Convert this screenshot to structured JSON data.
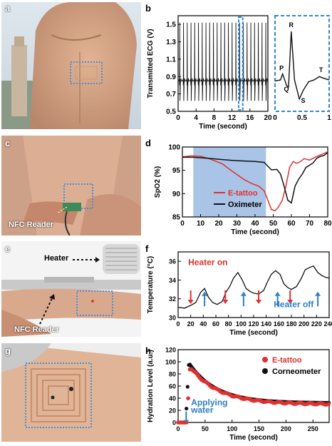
{
  "panels": {
    "a": "a",
    "b": "b",
    "c": "c",
    "d": "d",
    "e": "e",
    "f": "f",
    "g": "g",
    "h": "h"
  },
  "photo_labels": {
    "nfc_reader_c": "NFC Reader",
    "heater": "Heater",
    "nfc_reader_e": "NFC Reader"
  },
  "colors": {
    "red": "#e03030",
    "black": "#111111",
    "blue": "#2f7fc0",
    "shade": "#a9c4e6",
    "dashed": "#2f88d0"
  },
  "chart_data": [
    {
      "panel": "b",
      "type": "line",
      "title": "",
      "xlabel": "Time (second)",
      "ylabel": "Transmitted ECG (V)",
      "xlim": [
        0,
        20
      ],
      "ylim": [
        0.5,
        1.6
      ],
      "xticks": [
        "0",
        "4",
        "8",
        "12",
        "16",
        "20"
      ],
      "yticks": [
        "0.5",
        "0.7",
        "0.9",
        "1.1",
        "1.3",
        "1.5"
      ],
      "beats": 24,
      "baseline": 0.85,
      "peak": 1.52,
      "trough": 0.62,
      "zoom_window": [
        13.5,
        14.4
      ],
      "inset": {
        "xlabel": "",
        "xlim": [
          0,
          1
        ],
        "xticks": [
          "0",
          "0.5",
          "1"
        ],
        "labels": [
          "P",
          "Q",
          "R",
          "S",
          "T"
        ]
      }
    },
    {
      "panel": "d",
      "type": "line",
      "xlabel": "Time (second)",
      "ylabel": "SpO2 (%)",
      "xlim": [
        0,
        80
      ],
      "ylim": [
        85,
        100
      ],
      "xticks": [
        "0",
        "10",
        "20",
        "30",
        "40",
        "50",
        "60",
        "70",
        "80"
      ],
      "yticks": [
        "85",
        "90",
        "95",
        "100"
      ],
      "shaded_range": [
        6,
        46
      ],
      "series": [
        {
          "name": "E-tattoo",
          "color": "red",
          "x": [
            0,
            5,
            10,
            14,
            18,
            22,
            26,
            30,
            34,
            38,
            42,
            45,
            47,
            49,
            51,
            53,
            55,
            57,
            59,
            61,
            63,
            65,
            67,
            70,
            73,
            76,
            78,
            80
          ],
          "y": [
            97.9,
            98.1,
            98.0,
            97.6,
            97.0,
            96.4,
            95.2,
            94.1,
            93.0,
            92.2,
            91.6,
            90.6,
            88.6,
            86.6,
            86.3,
            87.2,
            88.6,
            91.6,
            95.6,
            96.9,
            96.5,
            96.9,
            97.5,
            97.2,
            97.8,
            98.3,
            98.6,
            99.0
          ]
        },
        {
          "name": "Oximeter",
          "color": "black",
          "x": [
            0,
            6,
            10,
            16,
            22,
            28,
            34,
            40,
            45,
            49,
            52,
            54,
            56,
            58,
            60,
            62,
            64,
            66,
            68,
            70,
            72,
            74,
            76,
            78,
            80
          ],
          "y": [
            97.8,
            97.8,
            97.7,
            97.5,
            97.3,
            97.1,
            97.0,
            96.9,
            96.7,
            95.1,
            95.2,
            94.2,
            91.6,
            88.6,
            88.0,
            91.6,
            93.1,
            94.2,
            95.6,
            96.1,
            96.6,
            97.6,
            98.0,
            98.2,
            98.8
          ]
        }
      ]
    },
    {
      "panel": "f",
      "type": "line",
      "xlabel": "Time (second)",
      "ylabel": "Temperature (°C)",
      "xlim": [
        0,
        240
      ],
      "ylim": [
        30,
        37
      ],
      "xticks": [
        "0",
        "20",
        "40",
        "60",
        "80",
        "100",
        "120",
        "140",
        "160",
        "180",
        "200",
        "220",
        "240"
      ],
      "yticks": [
        "30",
        "32",
        "34",
        "36"
      ],
      "series": [
        {
          "name": "",
          "color": "black",
          "x": [
            0,
            10,
            20,
            28,
            36,
            42,
            48,
            55,
            62,
            70,
            76,
            82,
            88,
            95,
            102,
            108,
            114,
            120,
            128,
            136,
            142,
            148,
            155,
            162,
            168,
            174,
            180,
            188,
            196,
            202,
            208,
            215,
            222,
            228,
            234,
            240
          ],
          "y": [
            31.1,
            31.0,
            31.3,
            31.6,
            32.7,
            33.1,
            32.2,
            31.6,
            31.4,
            31.7,
            32.7,
            33.3,
            34.2,
            34.8,
            34.0,
            33.1,
            32.8,
            32.6,
            32.5,
            32.9,
            33.8,
            34.6,
            35.0,
            34.6,
            33.6,
            33.2,
            33.0,
            33.3,
            34.2,
            35.1,
            35.3,
            35.5,
            34.8,
            34.5,
            34.3,
            34.2
          ]
        }
      ],
      "annotations": {
        "heater_on": "Heater on",
        "heater_off": "Heater off",
        "on_times": [
          20,
          75,
          128,
          178
        ],
        "off_times": [
          42,
          104,
          158,
          222
        ]
      }
    },
    {
      "panel": "h",
      "type": "scatter",
      "xlabel": "Time (second)",
      "ylabel": "Hydration Level (a.u.)",
      "xlim": [
        0,
        280
      ],
      "ylim": [
        0,
        120
      ],
      "xticks": [
        "0",
        "50",
        "100",
        "150",
        "200",
        "250"
      ],
      "yticks": [
        "0",
        "20",
        "40",
        "60",
        "80",
        "100",
        "120"
      ],
      "annotation": "Applying water",
      "annotation_x": 15,
      "series": [
        {
          "name": "E-tattoo",
          "color": "red",
          "curve": {
            "t0": 22,
            "peak": 92,
            "floor": 30,
            "tau": 160,
            "end": 280
          }
        },
        {
          "name": "Corneometer",
          "color": "black",
          "curve": {
            "t0": 20,
            "peak": 98,
            "floor": 32,
            "tau": 150,
            "end": 280
          }
        }
      ]
    }
  ]
}
